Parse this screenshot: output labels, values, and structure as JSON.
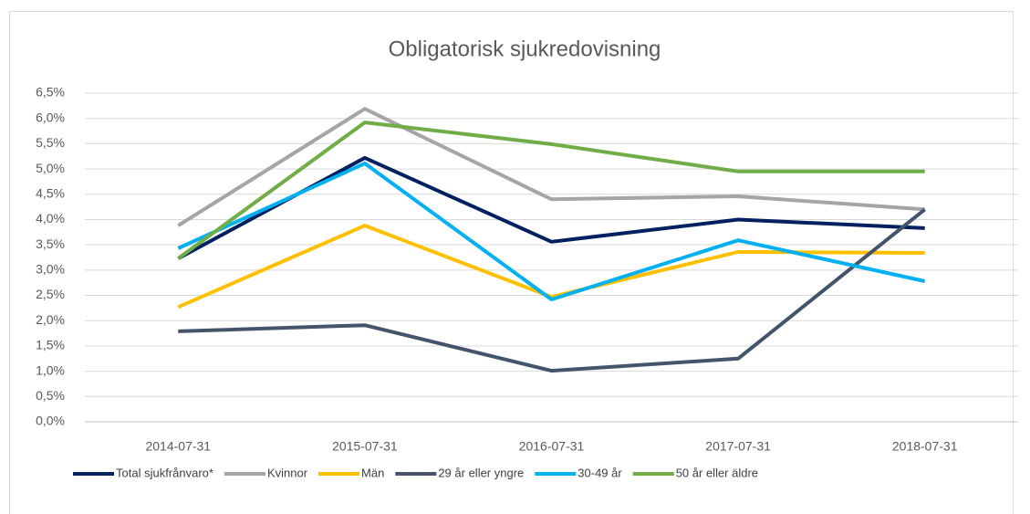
{
  "chart_data": {
    "type": "line",
    "title": "Obligatorisk sjukredovisning",
    "categories": [
      "2014-07-31",
      "2015-07-31",
      "2016-07-31",
      "2017-07-31",
      "2018-07-31"
    ],
    "series": [
      {
        "name": "Total sjukfrånvaro*",
        "color": "#002060",
        "values": [
          3.23,
          5.22,
          3.56,
          4.0,
          3.83
        ]
      },
      {
        "name": "Kvinnor",
        "color": "#a5a5a5",
        "values": [
          3.88,
          6.19,
          4.4,
          4.46,
          4.2
        ]
      },
      {
        "name": "Män",
        "color": "#ffc000",
        "values": [
          2.27,
          3.88,
          2.47,
          3.36,
          3.34
        ]
      },
      {
        "name": "29 år eller yngre",
        "color": "#44546a",
        "values": [
          1.79,
          1.91,
          1.01,
          1.25,
          4.2
        ]
      },
      {
        "name": "30-49 år",
        "color": "#00b0f0",
        "values": [
          3.43,
          5.11,
          2.42,
          3.59,
          2.78
        ]
      },
      {
        "name": "50 år eller äldre",
        "color": "#70ad47",
        "values": [
          3.23,
          5.92,
          5.49,
          4.95,
          4.95
        ]
      }
    ],
    "ylim": [
      0,
      6.5
    ],
    "yticks": [
      {
        "value": 0,
        "label": "0,0%"
      },
      {
        "value": 0.5,
        "label": "0,5%"
      },
      {
        "value": 1,
        "label": "1,0%"
      },
      {
        "value": 1.5,
        "label": "1,5%"
      },
      {
        "value": 2,
        "label": "2,0%"
      },
      {
        "value": 2.5,
        "label": "2,5%"
      },
      {
        "value": 3,
        "label": "3,0%"
      },
      {
        "value": 3.5,
        "label": "3,5%"
      },
      {
        "value": 4,
        "label": "4,0%"
      },
      {
        "value": 4.5,
        "label": "4,5%"
      },
      {
        "value": 5,
        "label": "5,0%"
      },
      {
        "value": 5.5,
        "label": "5,5%"
      },
      {
        "value": 6,
        "label": "6,0%"
      },
      {
        "value": 6.5,
        "label": "6,5%"
      }
    ],
    "grid": true,
    "legend": "bottom"
  }
}
